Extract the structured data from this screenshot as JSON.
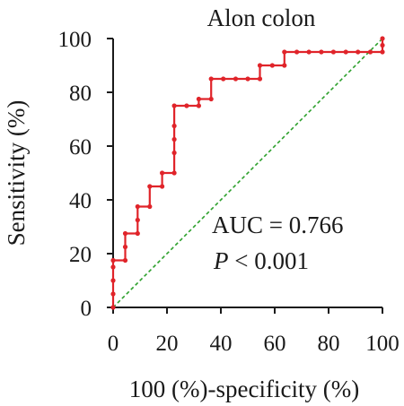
{
  "colors": {
    "roc": "#e0242a",
    "reference": "#2ca02c",
    "axis": "#1a1a1a"
  },
  "chart_data": {
    "type": "line",
    "title": "Alon colon",
    "xlabel": "100 (%)-specificity (%)",
    "ylabel": "Sensitivity (%)",
    "xlim": [
      0,
      100
    ],
    "ylim": [
      0,
      100
    ],
    "xticks": [
      0,
      20,
      40,
      60,
      80,
      100
    ],
    "yticks": [
      0,
      20,
      40,
      60,
      80,
      100
    ],
    "grid": false,
    "series": [
      {
        "style": "step-with-markers",
        "x": [
          0,
          0,
          0,
          0,
          0,
          4.5,
          4.5,
          4.5,
          9.1,
          9.1,
          9.1,
          13.6,
          13.6,
          18.2,
          18.2,
          22.7,
          22.7,
          22.7,
          22.7,
          22.7,
          27.3,
          31.8,
          31.8,
          36.4,
          36.4,
          40.9,
          45.5,
          50.0,
          54.5,
          54.5,
          59.1,
          63.6,
          63.6,
          68.2,
          72.7,
          77.3,
          81.8,
          86.4,
          90.9,
          95.5,
          100,
          100,
          100
        ],
        "y": [
          0,
          5,
          10,
          15,
          17.5,
          17.5,
          22.5,
          27.5,
          27.5,
          32.5,
          37.5,
          37.5,
          45,
          45,
          50,
          50,
          57.5,
          62.5,
          67.5,
          75,
          75,
          75,
          77.5,
          77.5,
          85,
          85,
          85,
          85,
          85,
          90,
          90,
          90,
          95,
          95,
          95,
          95,
          95,
          95,
          95,
          95,
          95,
          97.5,
          100
        ]
      },
      {
        "style": "dashed-reference",
        "x": [
          0,
          100
        ],
        "y": [
          0,
          100
        ]
      }
    ],
    "annotations": {
      "auc": "AUC = 0.766",
      "p_symbol": "P",
      "p_rest": " < 0.001"
    }
  }
}
